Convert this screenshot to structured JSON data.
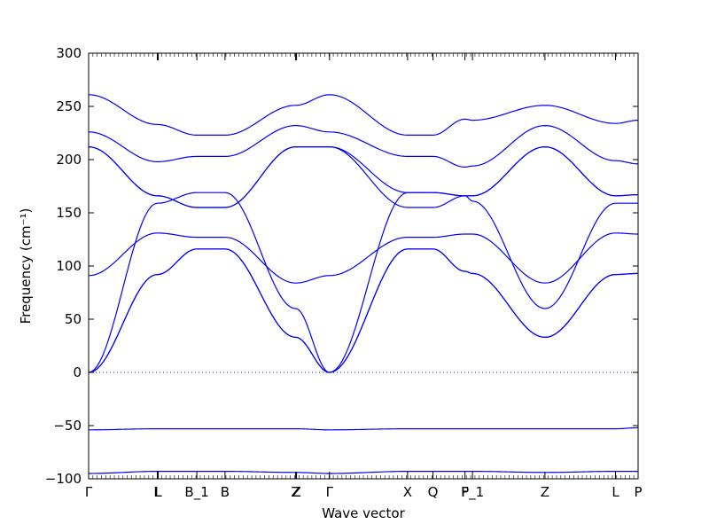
{
  "chart_data": {
    "type": "line",
    "title": "",
    "xlabel": "Wave vector",
    "ylabel": "Frequency (cm⁻¹)",
    "ylim": [
      -100,
      300
    ],
    "yticks": [
      -100,
      -50,
      0,
      50,
      100,
      150,
      200,
      250,
      300
    ],
    "ytick_labels": [
      "−100",
      "−50",
      "0",
      "50",
      "100",
      "150",
      "200",
      "250",
      "300"
    ],
    "xlim": [
      0,
      5.84
    ],
    "xticks": [
      {
        "x": 0.0,
        "label": "Γ"
      },
      {
        "x": 0.73,
        "label": "L"
      },
      {
        "x": 0.74,
        "label": "L"
      },
      {
        "x": 1.15,
        "label": "B_1"
      },
      {
        "x": 1.45,
        "label": "B"
      },
      {
        "x": 2.2,
        "label": "Z"
      },
      {
        "x": 2.21,
        "label": "Z"
      },
      {
        "x": 2.56,
        "label": "Γ"
      },
      {
        "x": 3.39,
        "label": "X"
      },
      {
        "x": 3.66,
        "label": "Q"
      },
      {
        "x": 4.0,
        "label": "F"
      },
      {
        "x": 4.08,
        "label": "P_1"
      },
      {
        "x": 4.85,
        "label": "Z"
      },
      {
        "x": 5.6,
        "label": "L"
      },
      {
        "x": 5.84,
        "label": "P"
      }
    ],
    "zero_line": 0,
    "series": [
      {
        "x": [
          0,
          0.73,
          1.15,
          1.45,
          2.2,
          2.56,
          3.39,
          3.66,
          4.0,
          4.08,
          4.85,
          5.6,
          5.84
        ],
        "y": [
          261,
          233,
          223,
          223,
          251,
          261,
          223,
          223,
          238,
          237,
          251,
          234,
          237
        ]
      },
      {
        "x": [
          0,
          0.73,
          1.15,
          1.45,
          2.2,
          2.56,
          3.39,
          3.66,
          4.0,
          4.08,
          4.85,
          5.6,
          5.84
        ],
        "y": [
          226,
          198,
          203,
          203,
          232,
          226,
          203,
          203,
          193,
          194,
          232,
          199,
          196
        ]
      },
      {
        "x": [
          0,
          0.73,
          1.15,
          1.45,
          2.2,
          2.56,
          3.39,
          3.66,
          4.0,
          4.08,
          4.85,
          5.6,
          5.84
        ],
        "y": [
          212,
          166,
          155,
          155,
          212,
          212,
          169,
          169,
          166,
          166,
          212,
          166,
          167
        ]
      },
      {
        "x": [
          0,
          0.73,
          1.15,
          1.45,
          2.2,
          2.56,
          3.39,
          3.66,
          4.0,
          4.08,
          4.85,
          5.6,
          5.84
        ],
        "y": [
          212,
          166,
          155,
          155,
          212,
          212,
          155,
          155,
          166,
          166,
          212,
          166,
          167
        ]
      },
      {
        "x": [
          0,
          0.73,
          1.15,
          1.45,
          2.2,
          2.56,
          3.39,
          3.66,
          4.0,
          4.08,
          4.85,
          5.6,
          5.84
        ],
        "y": [
          0,
          159,
          169,
          169,
          60,
          0,
          169,
          169,
          166,
          161,
          60,
          159,
          159
        ]
      },
      {
        "x": [
          0,
          0.73,
          1.15,
          1.45,
          2.2,
          2.56,
          3.39,
          3.66,
          4.0,
          4.08,
          4.85,
          5.6,
          5.84
        ],
        "y": [
          91,
          131,
          127,
          127,
          84,
          91,
          127,
          127,
          130,
          130,
          84,
          131,
          130
        ]
      },
      {
        "x": [
          0,
          0.73,
          1.15,
          1.45,
          2.2,
          2.56,
          3.39,
          3.66,
          4.0,
          4.08,
          4.85,
          5.6,
          5.84
        ],
        "y": [
          0,
          92,
          116,
          116,
          33,
          0,
          116,
          116,
          95,
          93,
          33,
          92,
          93
        ]
      },
      {
        "x": [
          0,
          0.73,
          1.15,
          1.45,
          2.2,
          2.56,
          3.39,
          3.66,
          4.0,
          4.08,
          4.85,
          5.6,
          5.84
        ],
        "y": [
          0,
          92,
          116,
          116,
          33,
          0,
          116,
          116,
          95,
          93,
          33,
          92,
          93
        ]
      },
      {
        "x": [
          0,
          0.73,
          1.15,
          1.45,
          2.2,
          2.56,
          3.39,
          3.66,
          4.0,
          4.08,
          4.85,
          5.6,
          5.84
        ],
        "y": [
          -54,
          -53,
          -53,
          -53,
          -53,
          -54,
          -53,
          -53,
          -53,
          -53,
          -53,
          -53,
          -52
        ]
      },
      {
        "x": [
          0,
          0.73,
          1.15,
          1.45,
          2.2,
          2.56,
          3.39,
          3.66,
          4.0,
          4.08,
          4.85,
          5.6,
          5.84
        ],
        "y": [
          -95,
          -93,
          -93,
          -93,
          -94,
          -95,
          -93,
          -93,
          -93,
          -93,
          -94,
          -93,
          -93
        ]
      }
    ],
    "line_color": "#0000ff",
    "zero_line_color": "#0000ff",
    "grid": false,
    "legend": "none"
  }
}
